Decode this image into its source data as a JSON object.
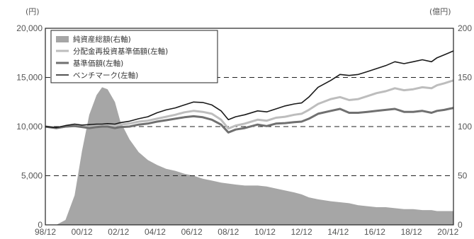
{
  "chart_data": {
    "type": "line",
    "title": "",
    "left_unit": "(円)",
    "right_unit": "(億円)",
    "x_tick_labels": [
      "98/12",
      "00/12",
      "02/12",
      "04/12",
      "06/12",
      "08/12",
      "10/12",
      "12/12",
      "14/12",
      "16/12",
      "18/12",
      "20/12"
    ],
    "y_left": {
      "range": [
        0,
        20000
      ],
      "ticks": [
        "0",
        "5,000",
        "10,000",
        "15,000",
        "20,000"
      ]
    },
    "y_right": {
      "range": [
        0,
        200
      ],
      "ticks": [
        "0",
        "50",
        "100",
        "150",
        "200"
      ]
    },
    "dashed_gridlines_left": [
      5000,
      10000,
      15000
    ],
    "legend_position": "top-left",
    "legend": [
      "純資産総額(右軸)",
      "分配金再投資基準価額(左軸)",
      "基準価額(左軸)",
      "ベンチマーク(左軸)"
    ],
    "x": [
      1998.9,
      1999.5,
      2000,
      2000.5,
      2000.9,
      2001.3,
      2001.7,
      2002,
      2002.3,
      2002.7,
      2003,
      2003.5,
      2004,
      2004.5,
      2005,
      2005.5,
      2006,
      2006.5,
      2007,
      2007.5,
      2008,
      2008.5,
      2008.9,
      2009.3,
      2009.8,
      2010.5,
      2011,
      2011.5,
      2012,
      2012.5,
      2012.9,
      2013.3,
      2013.8,
      2014.5,
      2015,
      2015.5,
      2016,
      2016.5,
      2017,
      2017.5,
      2018,
      2018.5,
      2019,
      2019.5,
      2020,
      2020.3,
      2020.7,
      2021.2
    ],
    "series": [
      {
        "name": "純資産総額(右軸)",
        "axis": "right",
        "style": "area",
        "color": "#a6a6a6",
        "values": [
          0,
          0,
          5,
          30,
          75,
          112,
          132,
          140,
          138,
          125,
          105,
          87,
          74,
          66,
          61,
          57,
          55,
          52,
          50,
          47,
          45,
          43,
          42,
          41,
          40,
          40,
          39,
          37,
          35,
          33,
          31,
          28,
          26,
          24,
          23,
          22,
          20,
          19,
          18,
          18,
          17,
          16,
          16,
          15,
          15,
          14,
          14,
          14
        ]
      },
      {
        "name": "分配金再投資基準価額(左軸)",
        "axis": "left",
        "style": "line",
        "color": "#bdbdbd",
        "values": [
          10000,
          9850,
          10000,
          10100,
          10000,
          9950,
          10050,
          10100,
          10150,
          10050,
          10200,
          10300,
          10500,
          10600,
          10800,
          11000,
          11200,
          11450,
          11600,
          11500,
          11300,
          10700,
          9800,
          10100,
          10300,
          10700,
          10600,
          10900,
          11000,
          11200,
          11300,
          11700,
          12300,
          12800,
          13000,
          12700,
          12800,
          13100,
          13400,
          13600,
          13900,
          13700,
          13800,
          14000,
          13900,
          14200,
          14400,
          14700
        ]
      },
      {
        "name": "基準価額(左軸)",
        "axis": "left",
        "style": "line",
        "color": "#707070",
        "values": [
          10000,
          9850,
          10000,
          10050,
          9950,
          9850,
          9950,
          10000,
          10000,
          9850,
          9950,
          10000,
          10200,
          10300,
          10500,
          10650,
          10800,
          10950,
          11050,
          10950,
          10700,
          10200,
          9400,
          9700,
          9850,
          10200,
          10050,
          10300,
          10350,
          10450,
          10500,
          10800,
          11300,
          11600,
          11800,
          11400,
          11400,
          11500,
          11600,
          11700,
          11800,
          11500,
          11500,
          11600,
          11400,
          11600,
          11700,
          11900
        ]
      },
      {
        "name": "ベンチマーク(左軸)",
        "axis": "left",
        "style": "line",
        "color": "#1a1a1a",
        "values": [
          10000,
          9900,
          10100,
          10250,
          10150,
          10200,
          10250,
          10250,
          10300,
          10250,
          10400,
          10550,
          10800,
          11000,
          11400,
          11700,
          11900,
          12200,
          12500,
          12450,
          12200,
          11600,
          10700,
          11000,
          11200,
          11600,
          11500,
          11800,
          12100,
          12300,
          12400,
          13000,
          14000,
          14700,
          15300,
          15200,
          15300,
          15600,
          15900,
          16200,
          16600,
          16400,
          16600,
          16800,
          16600,
          17000,
          17300,
          17700
        ]
      }
    ]
  }
}
